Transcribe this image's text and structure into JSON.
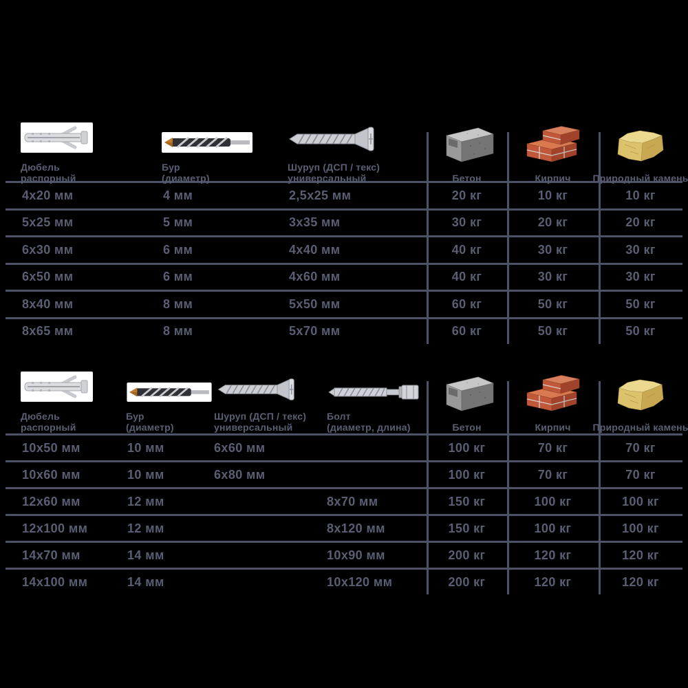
{
  "page": {
    "background_color": "#000000",
    "text_color": "#5a5e73",
    "line_color": "#4e5268",
    "language": "ru"
  },
  "icons": {
    "dowel-icon": "expansion wall plug photo",
    "drill-bit-icon": "masonry drill bit photo",
    "screw-icon": "countersunk universal screw photo",
    "bolt-icon": "hex head lag bolt photo",
    "concrete-block-icon": "grey concrete block",
    "brick-icon": "red bricks",
    "stone-icon": "natural stone block"
  },
  "chart_data": [
    {
      "type": "table",
      "title": "",
      "columns": [
        {
          "id": "dowel",
          "caption": "Дюбель\nраспорный",
          "icon": "dowel-icon"
        },
        {
          "id": "drill",
          "caption": "Бур\n(диаметр)",
          "icon": "drill-bit-icon"
        },
        {
          "id": "screw",
          "caption": "Шуруп (ДСП / текс)\nуниверсальный",
          "icon": "screw-icon"
        },
        {
          "id": "concrete",
          "caption": "Бетон",
          "icon": "concrete-block-icon"
        },
        {
          "id": "brick",
          "caption": "Кирпич",
          "icon": "brick-icon"
        },
        {
          "id": "stone",
          "caption": "Природный камень",
          "icon": "stone-icon"
        }
      ],
      "rows": [
        [
          "4x20 мм",
          "4 мм",
          "2,5x25 мм",
          "20 кг",
          "10 кг",
          "10 кг"
        ],
        [
          "5x25 мм",
          "5 мм",
          "3x35 мм",
          "30 кг",
          "20 кг",
          "20 кг"
        ],
        [
          "6x30 мм",
          "6 мм",
          "4x40 мм",
          "40 кг",
          "30 кг",
          "30 кг"
        ],
        [
          "6x50 мм",
          "6 мм",
          "4x60 мм",
          "40 кг",
          "30 кг",
          "30 кг"
        ],
        [
          "8x40 мм",
          "8 мм",
          "5x50 мм",
          "60 кг",
          "50 кг",
          "50 кг"
        ],
        [
          "8x65 мм",
          "8 мм",
          "5x70 мм",
          "60 кг",
          "50 кг",
          "50 кг"
        ]
      ]
    },
    {
      "type": "table",
      "title": "",
      "columns": [
        {
          "id": "dowel",
          "caption": "Дюбель\nраспорный",
          "icon": "dowel-icon"
        },
        {
          "id": "drill",
          "caption": "Бур\n(диаметр)",
          "icon": "drill-bit-icon"
        },
        {
          "id": "screw",
          "caption": "Шуруп (ДСП / текс)\nуниверсальный",
          "icon": "screw-icon"
        },
        {
          "id": "bolt",
          "caption": "Болт\n(диаметр, длина)",
          "icon": "bolt-icon"
        },
        {
          "id": "concrete",
          "caption": "Бетон",
          "icon": "concrete-block-icon"
        },
        {
          "id": "brick",
          "caption": "Кирпич",
          "icon": "brick-icon"
        },
        {
          "id": "stone",
          "caption": "Природный камень",
          "icon": "stone-icon"
        }
      ],
      "rows": [
        [
          "10x50 мм",
          "10 мм",
          "6x60 мм",
          "",
          "100 кг",
          "70 кг",
          "70 кг"
        ],
        [
          "10x60 мм",
          "10 мм",
          "6x80 мм",
          "",
          "100 кг",
          "70 кг",
          "70 кг"
        ],
        [
          "12x60 мм",
          "12 мм",
          "",
          "8x70 мм",
          "150 кг",
          "100 кг",
          "100 кг"
        ],
        [
          "12x100 мм",
          "12 мм",
          "",
          "8x120 мм",
          "150 кг",
          "100 кг",
          "100 кг"
        ],
        [
          "14x70 мм",
          "14 мм",
          "",
          "10x90 мм",
          "200 кг",
          "120 кг",
          "120 кг"
        ],
        [
          "14x100 мм",
          "14 мм",
          "",
          "10x120 мм",
          "200 кг",
          "120 кг",
          "120 кг"
        ]
      ]
    }
  ]
}
